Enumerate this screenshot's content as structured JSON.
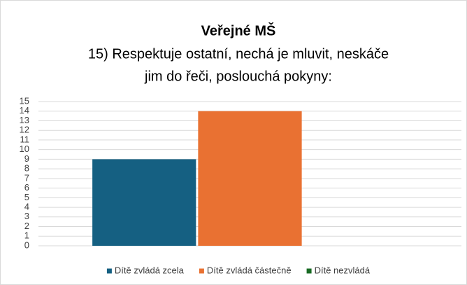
{
  "chart_data": {
    "type": "bar",
    "title": "Veřejné MŠ",
    "subtitle": [
      "15) Respektuje ostatní, nechá je mluvit, neskáče",
      "jim do řeči, poslouchá pokyny:"
    ],
    "categories": [
      null
    ],
    "series": [
      {
        "name": "Dítě zvládá zcela",
        "color": "#156082",
        "values": [
          9
        ]
      },
      {
        "name": "Dítě zvládá částečně",
        "color": "#e97132",
        "values": [
          14
        ]
      },
      {
        "name": "Dítě nezvládá",
        "color": "#196b24",
        "values": [
          0
        ]
      }
    ],
    "ylim": [
      0,
      15
    ],
    "yticks": [
      0,
      1,
      2,
      3,
      4,
      5,
      6,
      7,
      8,
      9,
      10,
      11,
      12,
      13,
      14,
      15
    ],
    "grid": true,
    "legend": "bottom"
  }
}
